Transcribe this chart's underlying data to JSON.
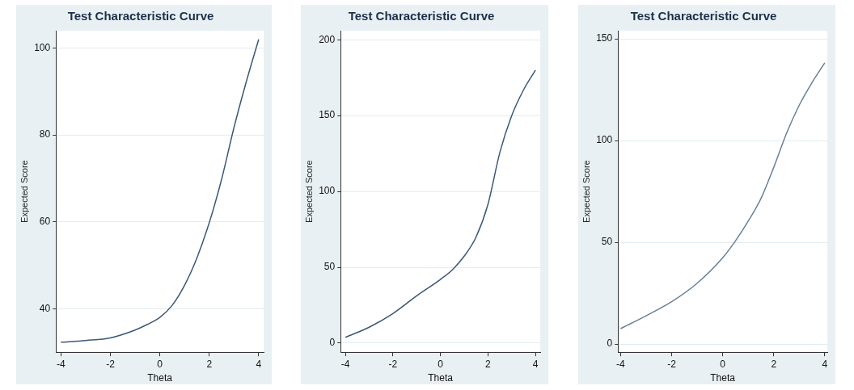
{
  "chart_data": [
    {
      "type": "line",
      "title": "Test Characteristic Curve",
      "xlabel": "Theta",
      "ylabel": "Expected Score",
      "x": [
        -4,
        -3,
        -2,
        -1,
        -0.5,
        0,
        0.5,
        1,
        1.5,
        2,
        2.5,
        3,
        3.5,
        4
      ],
      "series": [
        {
          "color": "#3b5878",
          "values": [
            32.3,
            32.7,
            33.3,
            35.1,
            36.4,
            38,
            40.8,
            45.4,
            51.7,
            59.8,
            69.8,
            81.7,
            92.3,
            102
          ]
        }
      ],
      "xlim": [
        -4.2,
        4.2
      ],
      "xticks": [
        -4,
        -2,
        0,
        2,
        4
      ],
      "ylim": [
        30,
        104
      ],
      "yticks": [
        40,
        60,
        80,
        100
      ],
      "grid": "y"
    },
    {
      "type": "line",
      "title": "Test Characteristic Curve",
      "xlabel": "Theta",
      "ylabel": "Expected Score",
      "x": [
        -4,
        -3,
        -2,
        -1,
        0,
        0.5,
        1,
        1.5,
        2,
        2.5,
        3,
        3.5,
        4
      ],
      "series": [
        {
          "color": "#3b5878",
          "values": [
            3.8,
            10.5,
            19.5,
            31.2,
            42,
            48.3,
            57.3,
            70,
            91.5,
            125.7,
            150,
            167,
            180
          ]
        }
      ],
      "xlim": [
        -4.2,
        4.2
      ],
      "xticks": [
        -4,
        -2,
        0,
        2,
        4
      ],
      "ylim": [
        -6,
        206
      ],
      "yticks": [
        0,
        50,
        100,
        150,
        200
      ],
      "grid": "y"
    },
    {
      "type": "line",
      "title": "Test Characteristic Curve",
      "xlabel": "Theta",
      "ylabel": "Expected Score",
      "x": [
        -4,
        -3,
        -2,
        -1,
        0,
        0.5,
        1,
        1.5,
        2,
        2.5,
        3,
        3.5,
        4
      ],
      "series": [
        {
          "color": "#6a7f98",
          "values": [
            7.6,
            13.9,
            20.8,
            29.9,
            42.4,
            50.7,
            60.4,
            71.5,
            86.8,
            103.5,
            117.4,
            128.5,
            138.2
          ]
        }
      ],
      "xlim": [
        -4.1,
        4.1
      ],
      "xticks": [
        -4,
        -2,
        0,
        2,
        4
      ],
      "ylim": [
        -4,
        154
      ],
      "yticks": [
        0,
        50,
        100,
        150
      ],
      "grid": "y"
    }
  ]
}
